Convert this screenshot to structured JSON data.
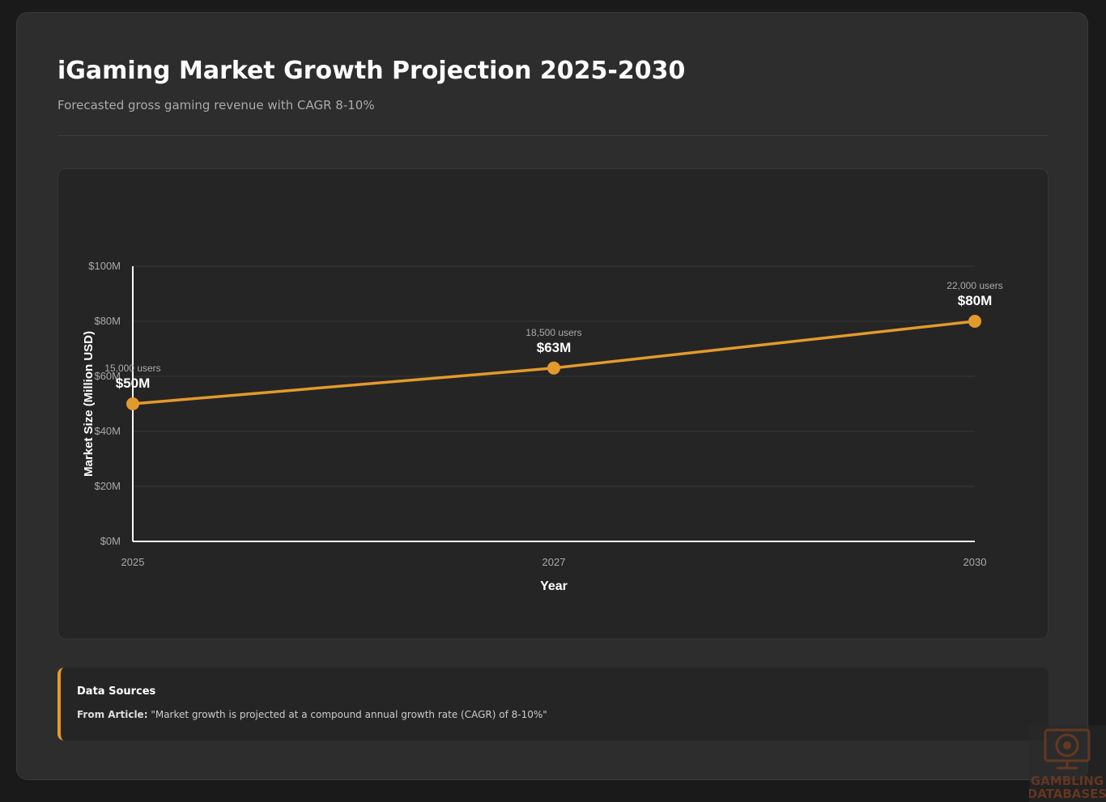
{
  "header": {
    "title": "iGaming Market Growth Projection 2025-2030",
    "subtitle": "Forecasted gross gaming revenue with CAGR 8-10%"
  },
  "chart_data": {
    "type": "line",
    "categories": [
      "2025",
      "2027",
      "2030"
    ],
    "values": [
      50,
      63,
      80
    ],
    "value_labels": [
      "$50M",
      "$63M",
      "$80M"
    ],
    "point_annotations": [
      "15,000 users",
      "18,500 users",
      "22,000 users"
    ],
    "xlabel": "Year",
    "ylabel": "Market Size (Million USD)",
    "ylim": [
      0,
      100
    ],
    "yticks": [
      0,
      20,
      40,
      60,
      80,
      100
    ],
    "ytick_labels": [
      "$0M",
      "$20M",
      "$40M",
      "$60M",
      "$80M",
      "$100M"
    ],
    "grid": true,
    "color": "#e39a2d"
  },
  "sources": {
    "title": "Data Sources",
    "label": "From Article:",
    "quote": "\"Market growth is projected at a compound annual growth rate (CAGR) of 8-10%\""
  },
  "watermark": {
    "text": [
      "GAMBLING",
      "DATABASES"
    ]
  }
}
